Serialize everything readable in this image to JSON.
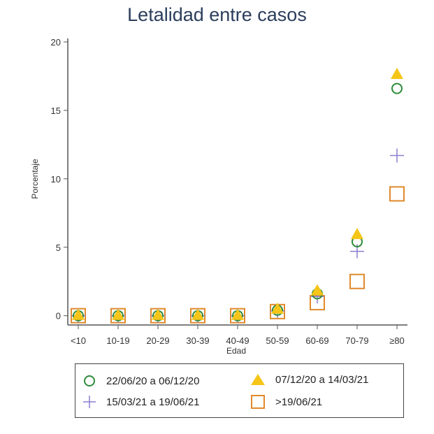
{
  "chart_data": {
    "type": "scatter",
    "title": "Letalidad entre casos",
    "xlabel": "Edad",
    "ylabel": "Porcentaje",
    "categories": [
      "<10",
      "10-19",
      "20-29",
      "30-39",
      "40-49",
      "50-59",
      "60-69",
      "70-79",
      "≥80"
    ],
    "ylim": [
      0,
      20
    ],
    "yticks": [
      0,
      5,
      10,
      15,
      20
    ],
    "grid": false,
    "legend_position": "bottom",
    "series": [
      {
        "name": "22/06/20 a 06/12/20",
        "marker": "circle-open",
        "color": "#2e8b3a",
        "values": [
          0,
          0,
          0,
          0,
          0,
          0.4,
          1.6,
          5.4,
          16.6
        ]
      },
      {
        "name": "07/12/20 a 14/03/21",
        "marker": "triangle-filled",
        "color": "#f5c518",
        "values": [
          0,
          0,
          0,
          0,
          0,
          0.45,
          1.8,
          5.9,
          17.6
        ]
      },
      {
        "name": "15/03/21 a 19/06/21",
        "marker": "plus",
        "color": "#8a7fd0",
        "values": [
          0,
          0,
          0,
          0,
          0,
          0.35,
          1.4,
          4.7,
          11.7
        ]
      },
      {
        "name": ">19/06/21",
        "marker": "square-open",
        "color": "#e08a2c",
        "values": [
          0,
          0,
          0,
          0,
          0,
          0.3,
          0.95,
          2.5,
          8.9
        ]
      }
    ]
  }
}
